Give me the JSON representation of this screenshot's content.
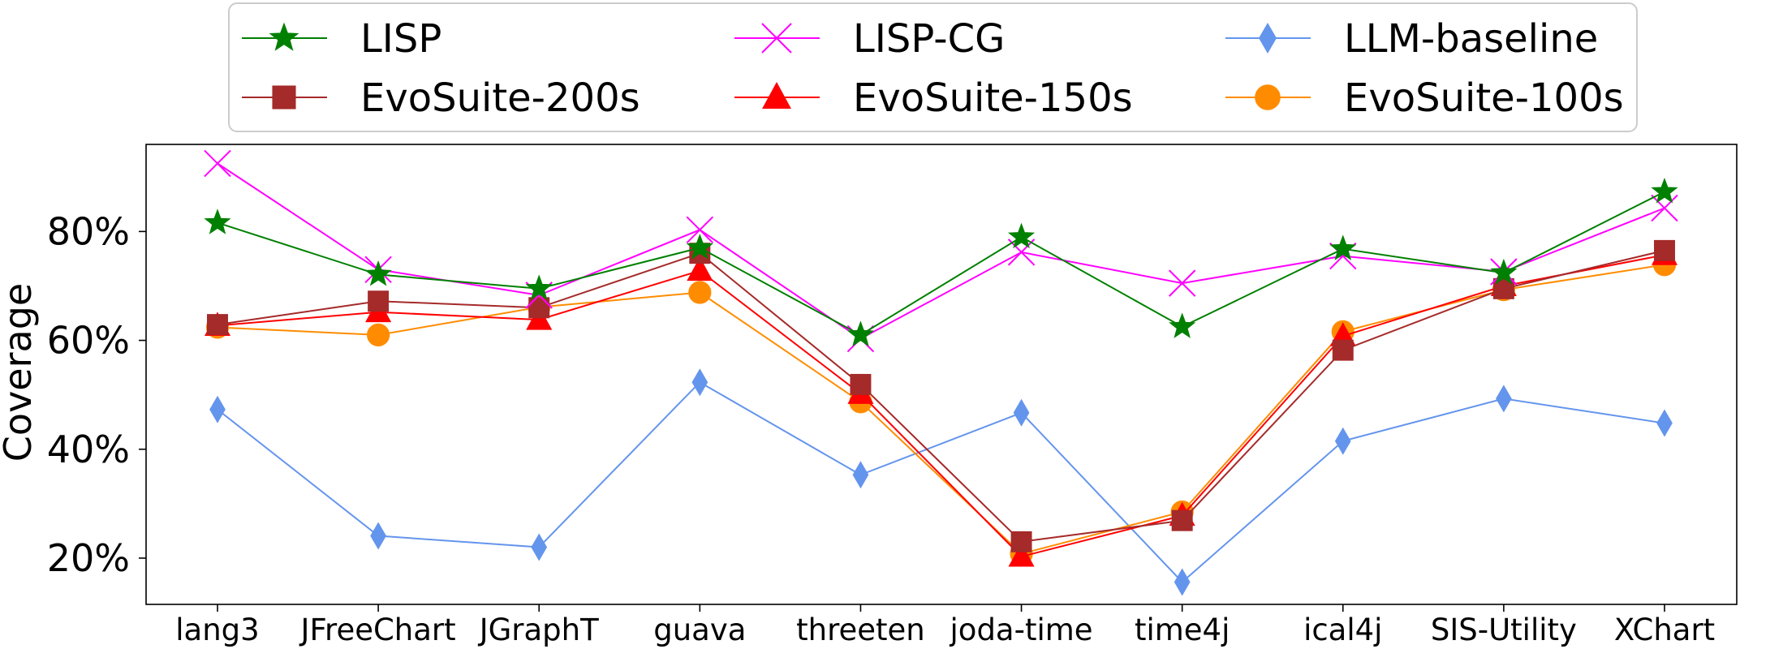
{
  "chart_data": {
    "type": "line",
    "title": "",
    "xlabel": "",
    "ylabel": "Coverage",
    "categories": [
      "lang3",
      "JFreeChart",
      "JGraphT",
      "guava",
      "threeten",
      "joda-time",
      "time4j",
      "ical4j",
      "SIS-Utility",
      "XChart"
    ],
    "yticks": [
      20,
      40,
      60,
      80
    ],
    "ytick_labels": [
      "20%",
      "40%",
      "60%",
      "80%"
    ],
    "ylim": [
      11.5,
      96
    ],
    "legend_position": "top-center, above plot, 3 columns",
    "series": [
      {
        "name": "LISP",
        "marker": "star",
        "color": "#008000",
        "values": [
          81.6,
          72.1,
          69.5,
          77.0,
          61.0,
          79.0,
          62.5,
          76.8,
          72.4,
          87.3
        ]
      },
      {
        "name": "LISP-CG",
        "marker": "x",
        "color": "#ff00ff",
        "values": [
          92.5,
          73.0,
          68.3,
          80.3,
          60.3,
          76.2,
          70.5,
          75.5,
          72.6,
          84.3
        ]
      },
      {
        "name": "LLM-baseline",
        "marker": "thin_diamond",
        "color": "#6495ed",
        "values": [
          47.3,
          24.1,
          22.0,
          52.3,
          35.3,
          46.7,
          15.6,
          41.5,
          49.3,
          44.8
        ]
      },
      {
        "name": "EvoSuite-200s",
        "marker": "square",
        "color": "#a52a2a",
        "values": [
          62.9,
          67.2,
          66.0,
          76.0,
          51.9,
          23.0,
          26.9,
          58.2,
          69.5,
          76.5
        ]
      },
      {
        "name": "EvoSuite-150s",
        "marker": "triangle",
        "color": "#ff0000",
        "values": [
          62.7,
          65.2,
          63.8,
          72.8,
          50.2,
          20.3,
          27.8,
          60.8,
          70.0,
          75.7
        ]
      },
      {
        "name": "EvoSuite-100s",
        "marker": "circle",
        "color": "#ff8c00",
        "values": [
          62.4,
          61.0,
          66.1,
          68.8,
          48.7,
          20.8,
          28.5,
          61.6,
          69.3,
          73.9
        ]
      }
    ]
  }
}
